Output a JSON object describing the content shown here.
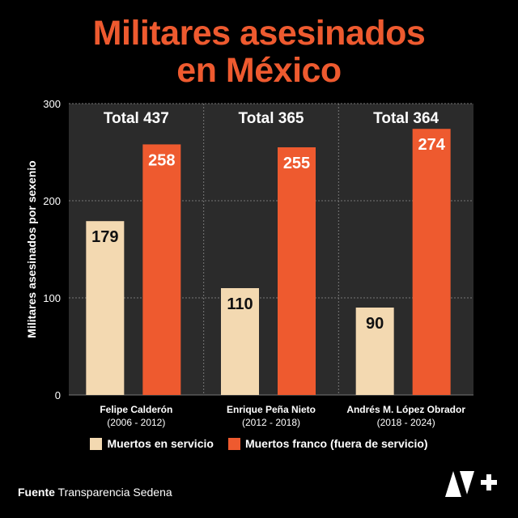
{
  "title_lines": [
    "Militares asesinados",
    "en México"
  ],
  "colors": {
    "title": "#ee5a2f",
    "servicio": "#f3d9b1",
    "franco": "#ee5a2f",
    "panel": "#2b2b2b",
    "grid": "#777777",
    "background": "#000000"
  },
  "chart_data": {
    "type": "bar",
    "ylabel": "Militares asesinados por sexenio",
    "ylim": [
      0,
      300
    ],
    "yticks": [
      "0",
      "100",
      "200",
      "300"
    ],
    "groups": [
      {
        "name": "Felipe Calderón",
        "period": "(2006 - 2012)",
        "total_label": "Total 437"
      },
      {
        "name": "Enrique Peña Nieto",
        "period": "(2012 - 2018)",
        "total_label": "Total 365"
      },
      {
        "name": "Andrés M. López Obrador",
        "period": "(2018 - 2024)",
        "total_label": "Total 364"
      }
    ],
    "series": [
      {
        "name": "Muertos en servicio",
        "values": [
          179,
          110,
          90
        ]
      },
      {
        "name": "Muertos franco (fuera de servicio)",
        "values": [
          258,
          255,
          274
        ]
      }
    ],
    "legend_position": "bottom",
    "grid": true
  },
  "source": {
    "label": "Fuente",
    "text": "Transparencia Sedena"
  },
  "logo": {
    "name": "n-plus-logo",
    "text": "N+"
  }
}
